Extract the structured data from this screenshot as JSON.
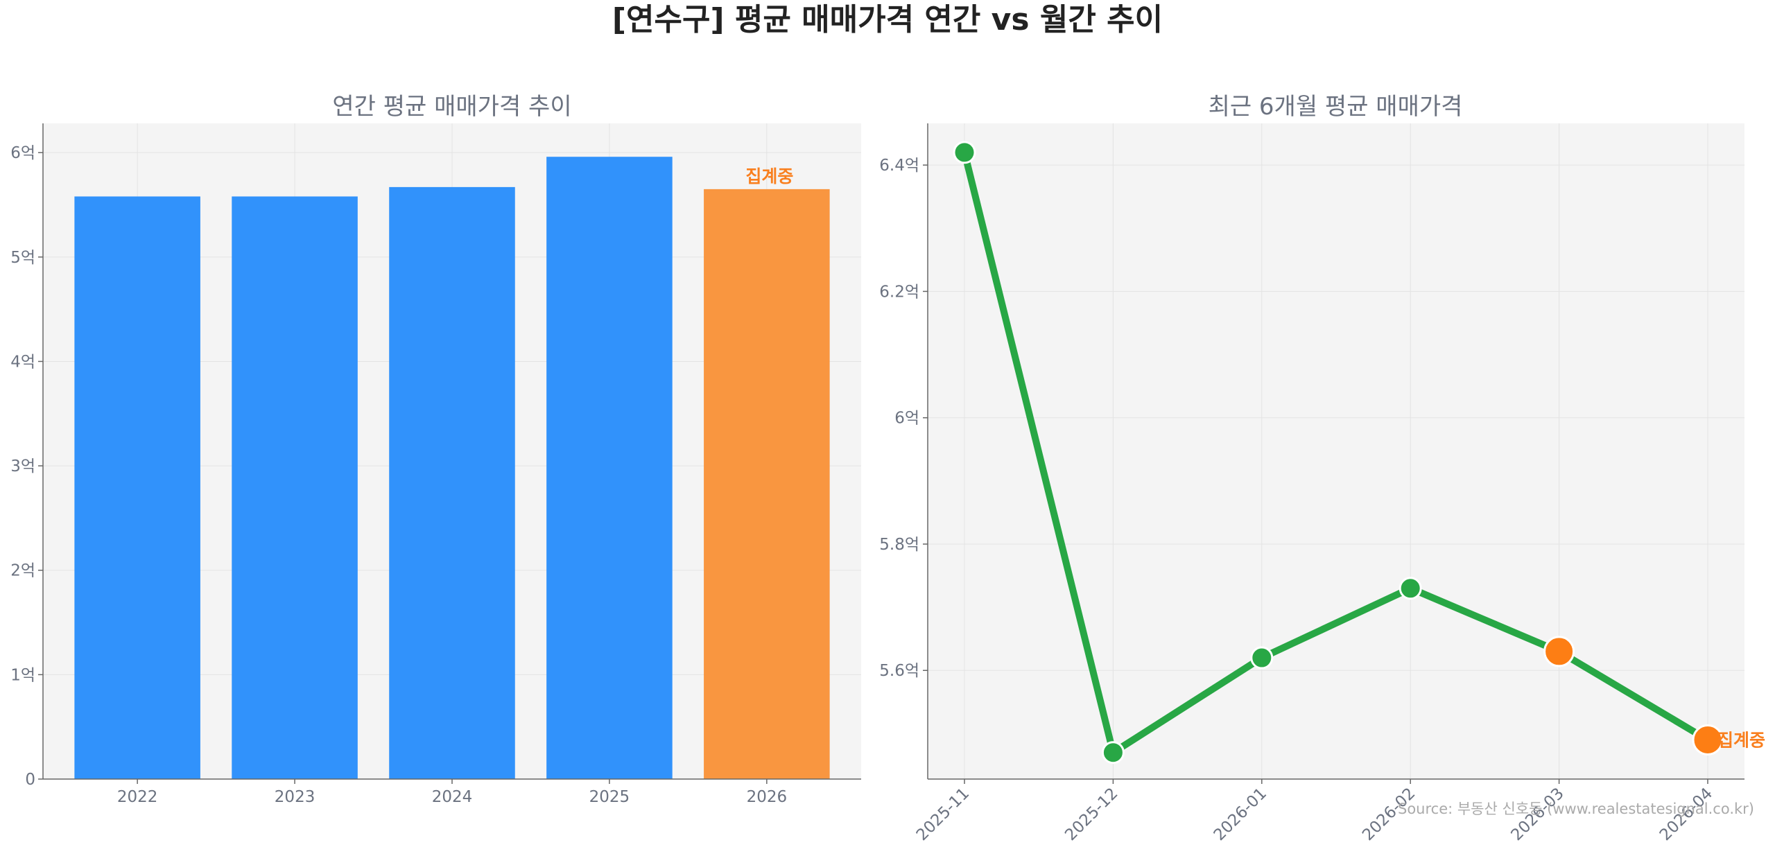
{
  "figure": {
    "title": "[연수구] 평균 매매가격 연간 vs 월간 추이",
    "source": "Source: 부동산 신호등 (www.realestatesignal.co.kr)"
  },
  "colors": {
    "bar_complete": "#3192fb",
    "bar_pending": "#f99640",
    "line": "#28a745",
    "marker_pending": "#fd7e14",
    "pending_label": "#f97f1e",
    "panel_background": "#f4f4f4",
    "grid": "#e3e3e3",
    "axis": "#666666",
    "tick_text": "#6b7280"
  },
  "chart_data": [
    {
      "type": "bar",
      "title": "연간 평균 매매가격 추이",
      "categories": [
        "2022",
        "2023",
        "2024",
        "2025",
        "2026"
      ],
      "unit": "억",
      "values": [
        5.58,
        5.58,
        5.67,
        5.96,
        5.65
      ],
      "pending": [
        false,
        false,
        false,
        false,
        true
      ],
      "pending_label": "집계중",
      "ylim": [
        0,
        6.28
      ],
      "yticks": [
        0,
        1,
        2,
        3,
        4,
        5,
        6
      ],
      "ytick_labels": [
        "0",
        "1억",
        "2억",
        "3억",
        "4억",
        "5억",
        "6억"
      ],
      "grid": true,
      "legend": "none"
    },
    {
      "type": "line",
      "title": "최근 6개월 평균 매매가격",
      "x": [
        "2025-11",
        "2025-12",
        "2026-01",
        "2026-02",
        "2026-03",
        "2026-04"
      ],
      "unit": "억",
      "values": [
        6.42,
        5.47,
        5.62,
        5.73,
        5.63,
        5.49
      ],
      "highlighted": [
        false,
        false,
        false,
        false,
        true,
        true
      ],
      "pending_label": "집계중",
      "ylim": [
        5.428,
        6.466
      ],
      "yticks": [
        5.6,
        5.8,
        6.0,
        6.2,
        6.4
      ],
      "ytick_labels": [
        "5.6억",
        "5.8억",
        "6억",
        "6.2억",
        "6.4억"
      ],
      "grid": true,
      "legend": "none"
    }
  ]
}
